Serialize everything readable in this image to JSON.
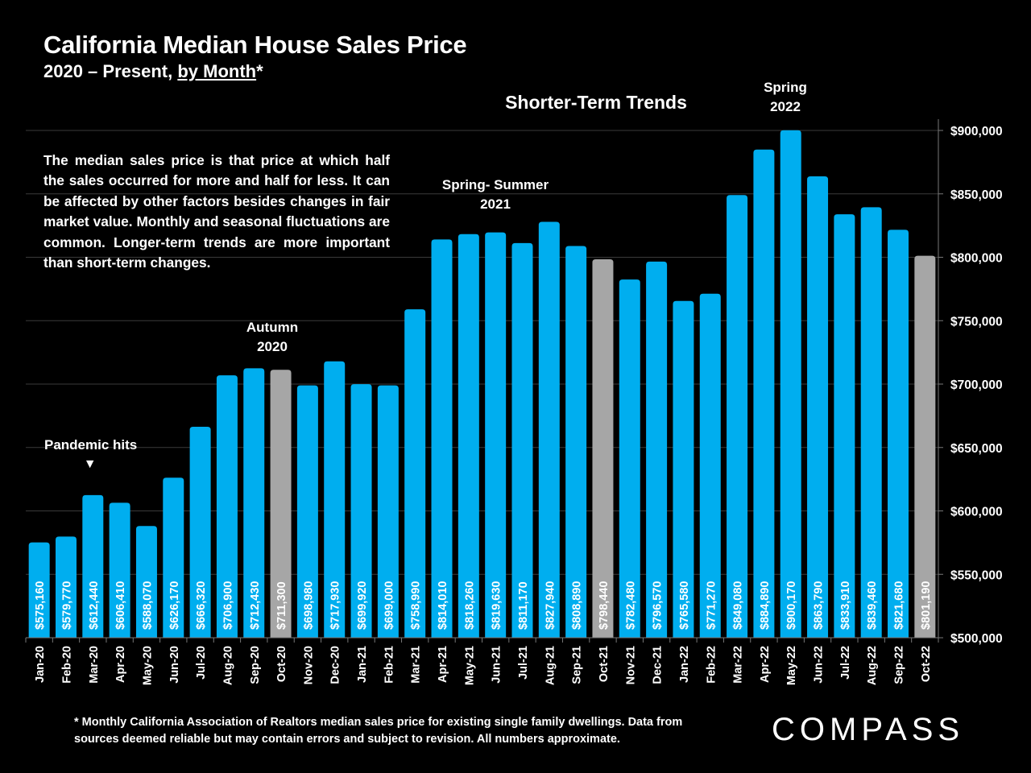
{
  "header": {
    "title": "California Median House Sales Price",
    "subtitle_prefix": "2020 – Present, ",
    "subtitle_link": "by Month",
    "subtitle_suffix": "*"
  },
  "section_title": "Shorter-Term Trends",
  "description": "The median sales price is that price at which half the sales occurred for more and half for less. It can be affected by other factors besides changes in fair market value. Monthly and seasonal fluctuations are common. Longer-term trends are more important than short-term changes.",
  "annotations": {
    "pandemic": "Pandemic hits",
    "pandemic_marker": "▼",
    "autumn_2020_line1": "Autumn",
    "autumn_2020_line2": "2020",
    "spring_summer_2021_line1": "Spring- Summer",
    "spring_summer_2021_line2": "2021",
    "spring_2022_line1": "Spring",
    "spring_2022_line2": "2022"
  },
  "footnote_line1": "* Monthly California Association of Realtors median sales price for existing single family dwellings. Data from",
  "footnote_line2": "sources deemed reliable but may contain errors and subject to revision. All numbers approximate.",
  "logo": "COMPASS",
  "colors": {
    "bar_primary": "#00AEEF",
    "bar_highlight": "#A6A6A6",
    "background": "#000000",
    "gridline": "#3a3a3a"
  },
  "chart_data": {
    "type": "bar",
    "title": "California Median House Sales Price",
    "subtitle": "2020 – Present, by Month*",
    "xlabel": "",
    "ylabel": "",
    "ylim": [
      500000,
      900000
    ],
    "y_axis_side": "right",
    "y_ticks": [
      500000,
      550000,
      600000,
      650000,
      700000,
      750000,
      800000,
      850000,
      900000
    ],
    "y_tick_labels": [
      "$500,000",
      "$550,000",
      "$600,000",
      "$650,000",
      "$700,000",
      "$750,000",
      "$800,000",
      "$850,000",
      "$900,000"
    ],
    "grid": true,
    "categories": [
      "Jan-20",
      "Feb-20",
      "Mar-20",
      "Apr-20",
      "May-20",
      "Jun-20",
      "Jul-20",
      "Aug-20",
      "Sep-20",
      "Oct-20",
      "Nov-20",
      "Dec-20",
      "Jan-21",
      "Feb-21",
      "Mar-21",
      "Apr-21",
      "May-21",
      "Jun-21",
      "Jul-21",
      "Aug-21",
      "Sep-21",
      "Oct-21",
      "Nov-21",
      "Dec-21",
      "Jan-22",
      "Feb-22",
      "Mar-22",
      "Apr-22",
      "May-22",
      "Jun-22",
      "Jul-22",
      "Aug-22",
      "Sep-22",
      "Oct-22"
    ],
    "values": [
      575160,
      579770,
      612440,
      606410,
      588070,
      626170,
      666320,
      706900,
      712430,
      711300,
      698980,
      717930,
      699920,
      699000,
      758990,
      814010,
      818260,
      819630,
      811170,
      827940,
      808890,
      798440,
      782480,
      796570,
      765580,
      771270,
      849080,
      884890,
      900170,
      863790,
      833910,
      839460,
      821680,
      801190
    ],
    "value_labels": [
      "$575,160",
      "$579,770",
      "$612,440",
      "$606,410",
      "$588,070",
      "$626,170",
      "$666,320",
      "$706,900",
      "$712,430",
      "$711,300",
      "$698,980",
      "$717,930",
      "$699,920",
      "$699,000",
      "$758,990",
      "$814,010",
      "$818,260",
      "$819,630",
      "$811,170",
      "$827,940",
      "$808,890",
      "$798,440",
      "$782,480",
      "$796,570",
      "$765,580",
      "$771,270",
      "$849,080",
      "$884,890",
      "$900,170",
      "$863,790",
      "$833,910",
      "$839,460",
      "$821,680",
      "$801,190"
    ],
    "highlighted": [
      "Oct-20",
      "Oct-21",
      "Oct-22"
    ],
    "annotations": [
      "Pandemic hits (Mar-20)",
      "Autumn 2020 (Oct-20)",
      "Spring- Summer 2021",
      "Spring 2022"
    ]
  }
}
